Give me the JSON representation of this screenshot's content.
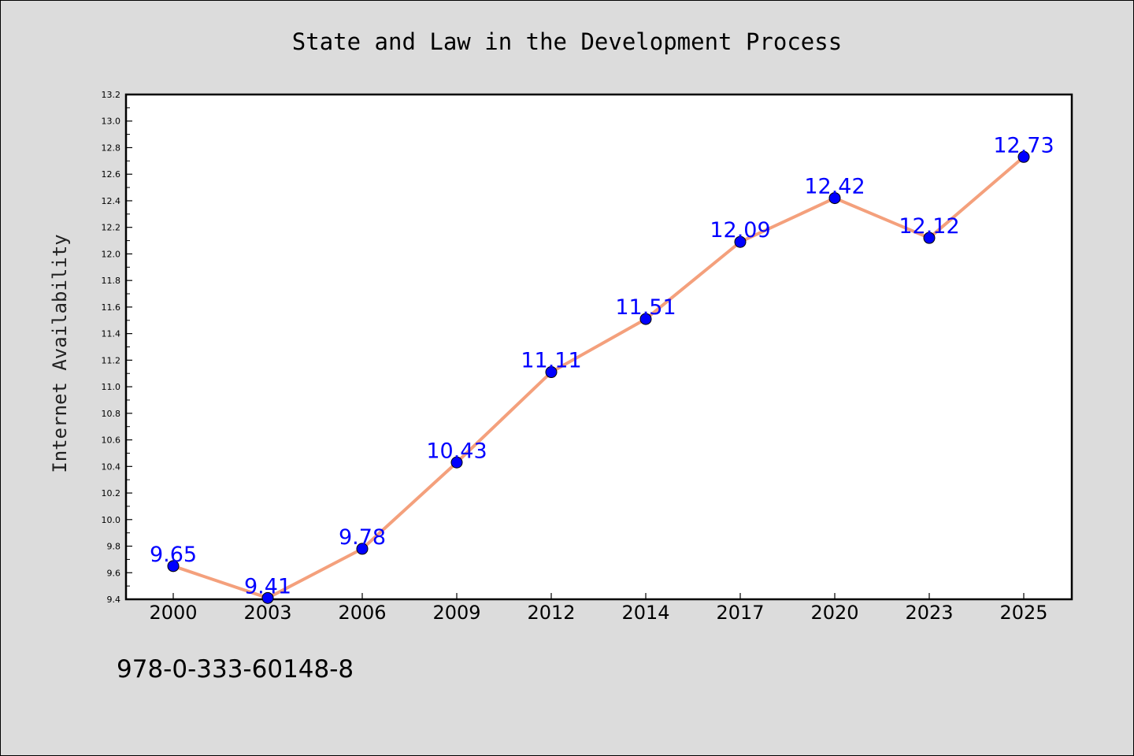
{
  "chart_data": {
    "type": "line",
    "title": "State and Law in the Development Process",
    "ylabel": "Internet Availability",
    "xlabel": "",
    "categories": [
      "2000",
      "2003",
      "2006",
      "2009",
      "2012",
      "2014",
      "2017",
      "2020",
      "2023",
      "2025"
    ],
    "series": [
      {
        "values": [
          9.65,
          9.41,
          9.78,
          10.43,
          11.11,
          11.51,
          12.09,
          12.42,
          12.12,
          12.73
        ],
        "labels": [
          "9.65",
          "9.41",
          "9.78",
          "10.43",
          "11.11",
          "11.51",
          "12.09",
          "12.42",
          "12.12",
          "12.73"
        ],
        "line_color": "#f4a07c",
        "marker_color": "#0000ff"
      }
    ],
    "ylim": [
      9.4,
      13.2
    ],
    "yticks": [
      "9.4",
      "9.6",
      "9.8",
      "10.0",
      "10.2",
      "10.4",
      "10.6",
      "10.8",
      "11.0",
      "11.2",
      "11.4",
      "11.6",
      "11.8",
      "12.0",
      "12.2",
      "12.4",
      "12.6",
      "12.8",
      "13.0",
      "13.2"
    ],
    "grid": false,
    "legend": "none"
  },
  "footnote": "978-0-333-60148-8",
  "colors": {
    "background": "#dcdcdc",
    "plot_background": "#ffffff",
    "label_color": "#0000ff"
  }
}
